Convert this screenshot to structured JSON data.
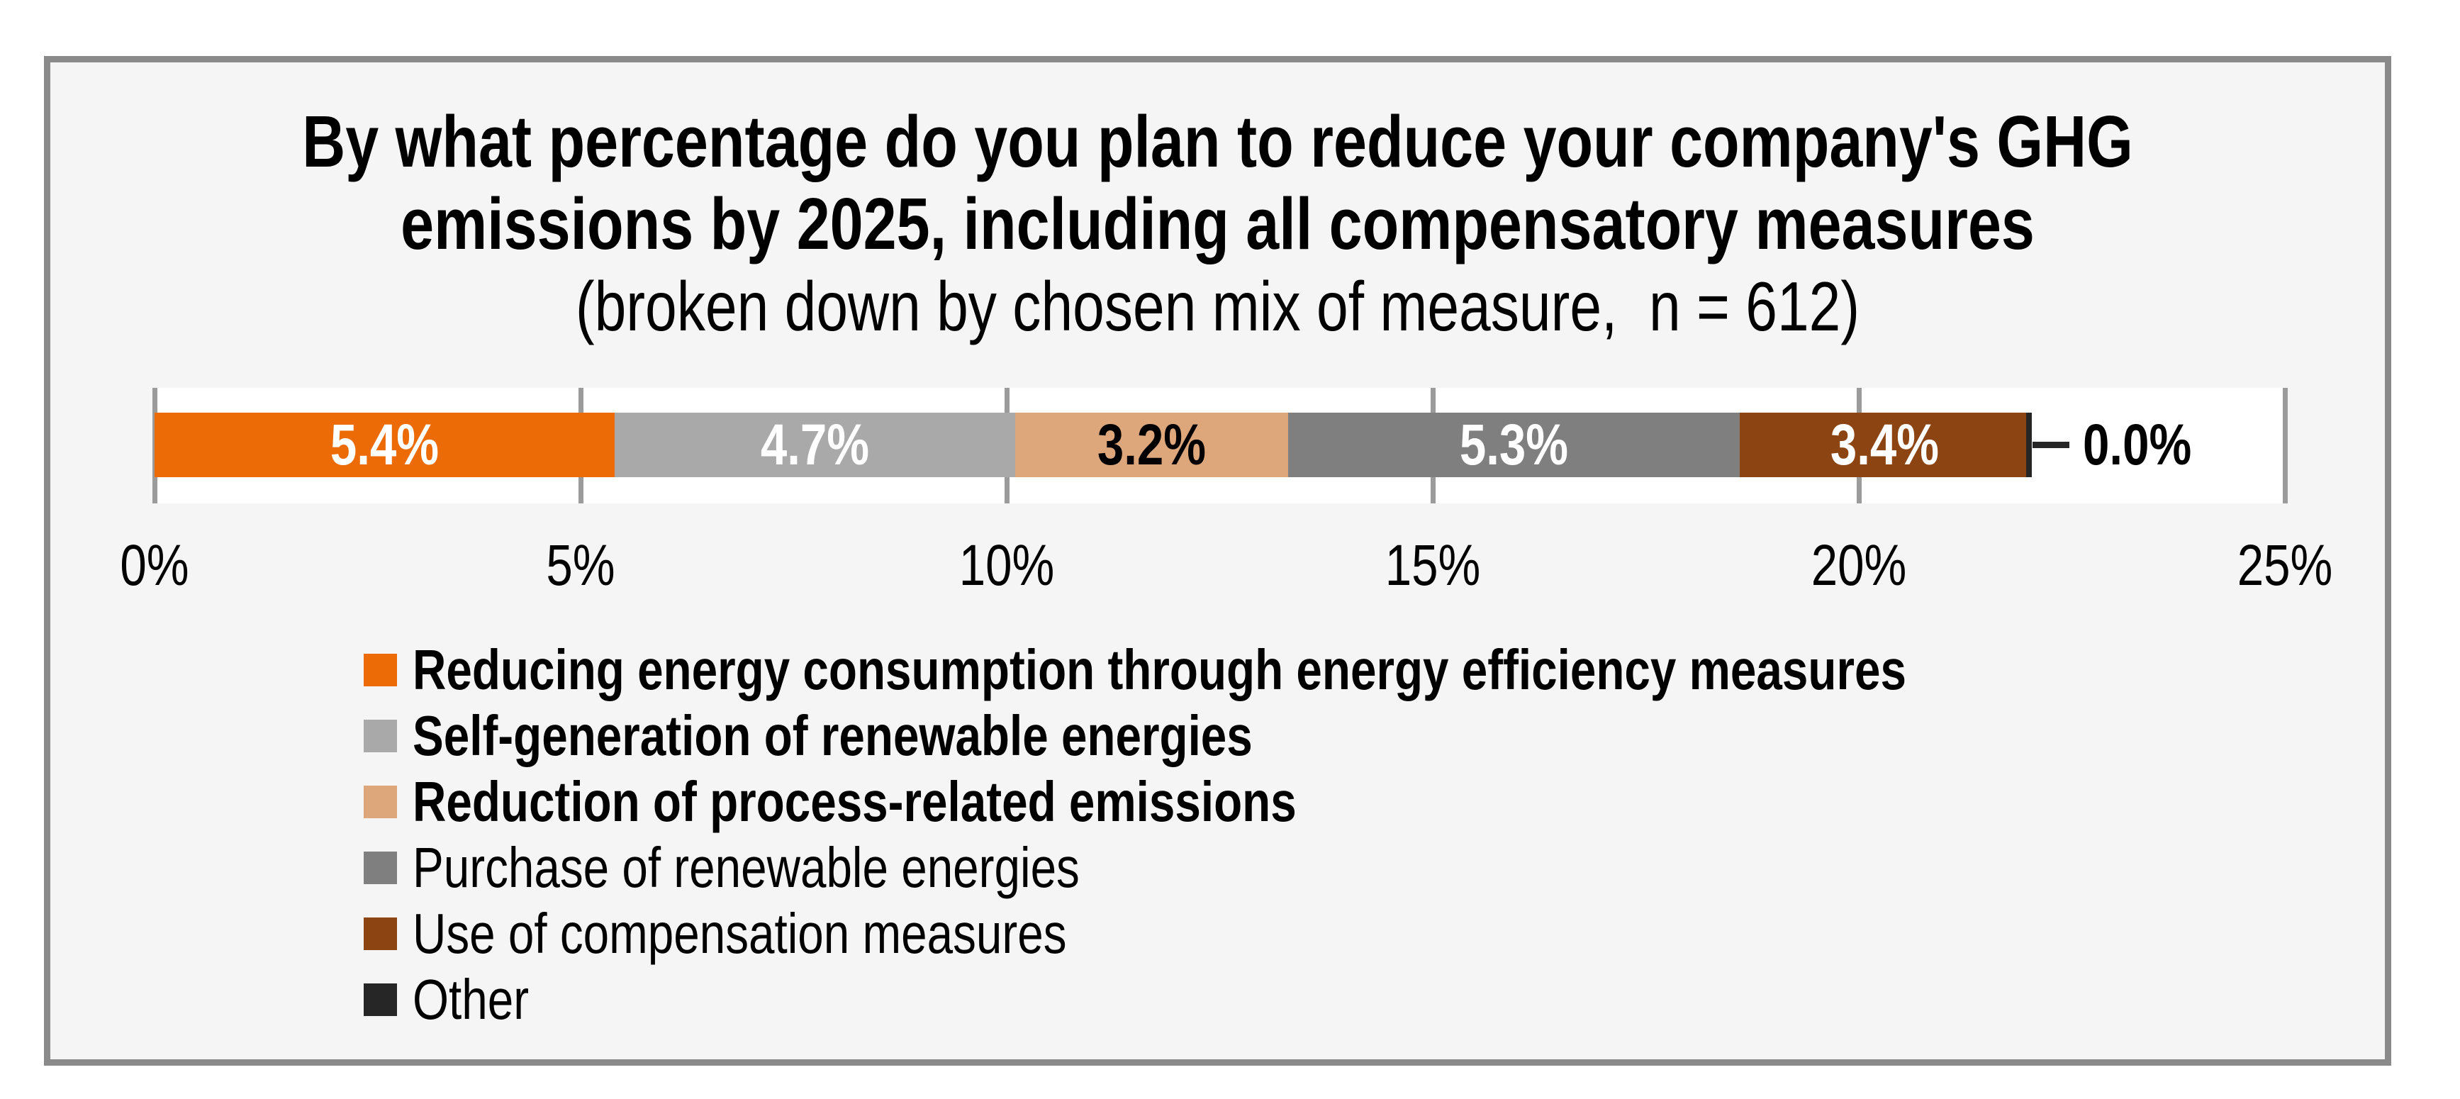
{
  "page": {
    "background": "#FFFFFF"
  },
  "frame": {
    "background": "#F5F5F5",
    "border_color": "#8A8A8A"
  },
  "title": {
    "line1": "By what percentage do you plan to reduce your company's GHG",
    "line2": "emissions by 2025, including all compensatory measures",
    "line3": "(broken down by chosen mix of measure,  n = 612)"
  },
  "chart_data": {
    "type": "bar",
    "subtype": "horizontal-stacked",
    "title": "By what percentage do you plan to reduce your company's GHG emissions by 2025, including all compensatory measures",
    "subtitle": "(broken down by chosen mix of measure,  n = 612)",
    "sample_size": 612,
    "grid": true,
    "gridline_color": "#9B9B9B",
    "plot_background": "#FFFFFF",
    "axis": {
      "min": 0,
      "max": 25,
      "unit": "%",
      "ticks": [
        "0%",
        "5%",
        "10%",
        "15%",
        "20%",
        "25%"
      ],
      "tick_values": [
        0,
        5,
        10,
        15,
        20,
        25
      ]
    },
    "total_label_sum": "22.0%",
    "segments": [
      {
        "name": "Reducing energy consumption through energy efficiency measures",
        "value": 5.4,
        "label": "5.4%",
        "color": "#EC6B06",
        "text_color": "#FFFFFF",
        "label_position": "inside"
      },
      {
        "name": "Self-generation of renewable energies",
        "value": 4.7,
        "label": "4.7%",
        "color": "#A9A9A9",
        "text_color": "#FFFFFF",
        "label_position": "inside"
      },
      {
        "name": "Reduction of process-related emissions",
        "value": 3.2,
        "label": "3.2%",
        "color": "#DDA77B",
        "text_color": "#000000",
        "label_position": "inside"
      },
      {
        "name": "Purchase of renewable energies",
        "value": 5.3,
        "label": "5.3%",
        "color": "#7F7F7F",
        "text_color": "#FFFFFF",
        "label_position": "inside"
      },
      {
        "name": "Use of compensation measures",
        "value": 3.4,
        "label": "3.4%",
        "color": "#8C4512",
        "text_color": "#FFFFFF",
        "label_position": "inside"
      },
      {
        "name": "Other",
        "value": 0.0,
        "label": "0.0%",
        "color": "#262626",
        "text_color": "#000000",
        "label_position": "callout"
      }
    ],
    "legend_position": "bottom-left"
  },
  "legend": {
    "items": [
      {
        "label": "Reducing energy consumption through energy efficiency measures",
        "color": "#EC6B06",
        "bold": true
      },
      {
        "label": "Self-generation of renewable energies",
        "color": "#A9A9A9",
        "bold": true
      },
      {
        "label": "Reduction of process-related emissions",
        "color": "#DDA77B",
        "bold": true
      },
      {
        "label": "Purchase of renewable energies",
        "color": "#7F7F7F",
        "bold": false
      },
      {
        "label": "Use of compensation measures",
        "color": "#8C4512",
        "bold": false
      },
      {
        "label": "Other",
        "color": "#262626",
        "bold": false
      }
    ]
  }
}
